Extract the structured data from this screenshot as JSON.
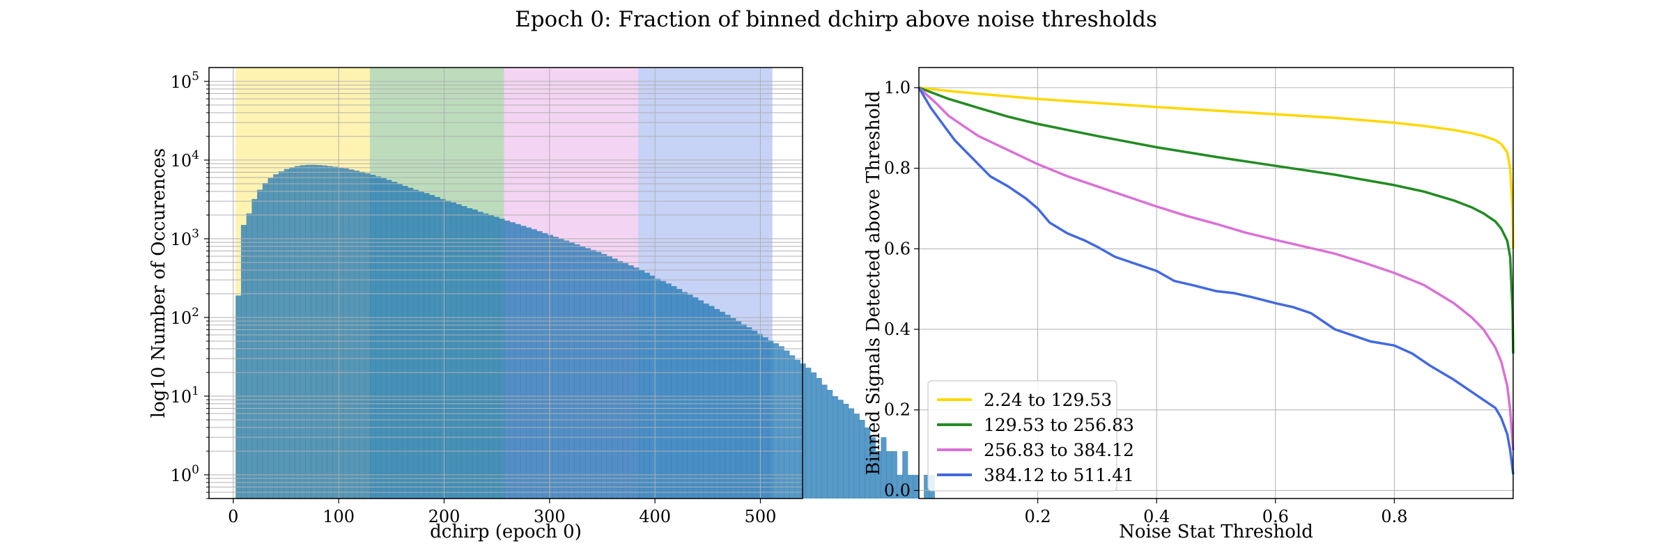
{
  "suptitle": "Epoch 0: Fraction of binned dchirp above noise thresholds",
  "chart_data": [
    {
      "type": "bar",
      "xlabel": "dchirp (epoch 0)",
      "ylabel": "log10 Number of Occurences",
      "xlim": [
        -23,
        540
      ],
      "ylim": [
        0.5,
        150000
      ],
      "yscale": "log",
      "grid": true,
      "xticks": [
        "0",
        "100",
        "200",
        "300",
        "400",
        "500"
      ],
      "yticks": [
        "10^0",
        "10^1",
        "10^2",
        "10^3",
        "10^4",
        "10^5"
      ],
      "bin_start": 2.24,
      "bin_width": 5.1,
      "counts": [
        190,
        1500,
        2100,
        3200,
        4200,
        5100,
        5900,
        6600,
        7200,
        7700,
        8100,
        8400,
        8600,
        8700,
        8700,
        8650,
        8550,
        8400,
        8250,
        8050,
        7850,
        7600,
        7350,
        7100,
        6800,
        6500,
        6200,
        5900,
        5600,
        5300,
        5000,
        4700,
        4450,
        4200,
        4000,
        3800,
        3600,
        3400,
        3200,
        3050,
        2900,
        2750,
        2600,
        2450,
        2350,
        2200,
        2100,
        2000,
        1900,
        1800,
        1700,
        1620,
        1540,
        1460,
        1390,
        1320,
        1250,
        1180,
        1120,
        1060,
        1000,
        950,
        900,
        850,
        800,
        760,
        720,
        680,
        640,
        600,
        560,
        520,
        490,
        460,
        430,
        400,
        370,
        340,
        310,
        290,
        270,
        250,
        230,
        210,
        195,
        180,
        165,
        150,
        140,
        128,
        118,
        108,
        98,
        90,
        82,
        75,
        68,
        62,
        56,
        51,
        47,
        43,
        38,
        33,
        29,
        26,
        23,
        20,
        17,
        14,
        12,
        10,
        9,
        8,
        7,
        6,
        5,
        4,
        3,
        2,
        3,
        2,
        2,
        1,
        2,
        1,
        1,
        0,
        1,
        1
      ],
      "bands": [
        {
          "from": 2.24,
          "to": 129.53,
          "color": "#ffd700"
        },
        {
          "from": 129.53,
          "to": 256.83,
          "color": "#228b22"
        },
        {
          "from": 256.83,
          "to": 384.12,
          "color": "#da70d6"
        },
        {
          "from": 384.12,
          "to": 511.41,
          "color": "#4169e1"
        }
      ],
      "bar_color": "#1f77b4"
    },
    {
      "type": "line",
      "xlabel": "Noise Stat Threshold",
      "ylabel": "Binned Signals Detected above Threshold",
      "xlim": [
        0,
        1
      ],
      "ylim": [
        -0.02,
        1.05
      ],
      "xticks": [
        "0.2",
        "0.4",
        "0.6",
        "0.8"
      ],
      "yticks": [
        "0.0",
        "0.2",
        "0.4",
        "0.6",
        "0.8",
        "1.0"
      ],
      "grid": true,
      "legend_position": "lower-left",
      "series": [
        {
          "name": "2.24 to 129.53",
          "color": "#ffd700",
          "x": [
            0,
            0.05,
            0.1,
            0.2,
            0.3,
            0.4,
            0.5,
            0.6,
            0.7,
            0.8,
            0.85,
            0.9,
            0.93,
            0.95,
            0.97,
            0.98,
            0.99,
            0.995,
            0.999,
            1.0
          ],
          "y": [
            1.0,
            0.992,
            0.985,
            0.972,
            0.962,
            0.952,
            0.943,
            0.934,
            0.925,
            0.913,
            0.905,
            0.895,
            0.887,
            0.88,
            0.87,
            0.86,
            0.84,
            0.8,
            0.7,
            0.6
          ]
        },
        {
          "name": "129.53 to 256.83",
          "color": "#228b22",
          "x": [
            0,
            0.05,
            0.1,
            0.15,
            0.2,
            0.3,
            0.4,
            0.5,
            0.6,
            0.7,
            0.8,
            0.85,
            0.9,
            0.93,
            0.95,
            0.97,
            0.98,
            0.99,
            0.995,
            0.999,
            1.0
          ],
          "y": [
            1.0,
            0.972,
            0.95,
            0.928,
            0.91,
            0.88,
            0.852,
            0.828,
            0.806,
            0.784,
            0.758,
            0.742,
            0.72,
            0.703,
            0.688,
            0.668,
            0.65,
            0.62,
            0.58,
            0.45,
            0.34
          ]
        },
        {
          "name": "256.83 to 384.12",
          "color": "#da70d6",
          "x": [
            0,
            0.03,
            0.05,
            0.08,
            0.1,
            0.15,
            0.2,
            0.25,
            0.3,
            0.35,
            0.4,
            0.45,
            0.5,
            0.55,
            0.6,
            0.65,
            0.7,
            0.75,
            0.8,
            0.85,
            0.9,
            0.93,
            0.95,
            0.97,
            0.98,
            0.99,
            0.995,
            1.0
          ],
          "y": [
            1.0,
            0.96,
            0.93,
            0.9,
            0.88,
            0.845,
            0.81,
            0.78,
            0.755,
            0.73,
            0.705,
            0.682,
            0.662,
            0.64,
            0.622,
            0.605,
            0.588,
            0.565,
            0.54,
            0.51,
            0.465,
            0.43,
            0.4,
            0.355,
            0.32,
            0.26,
            0.2,
            0.1
          ]
        },
        {
          "name": "384.12 to 511.41",
          "color": "#4169e1",
          "x": [
            0,
            0.02,
            0.04,
            0.06,
            0.08,
            0.1,
            0.12,
            0.15,
            0.18,
            0.2,
            0.22,
            0.25,
            0.28,
            0.3,
            0.33,
            0.36,
            0.4,
            0.43,
            0.46,
            0.5,
            0.53,
            0.56,
            0.6,
            0.63,
            0.66,
            0.7,
            0.73,
            0.76,
            0.8,
            0.83,
            0.86,
            0.9,
            0.93,
            0.95,
            0.97,
            0.98,
            0.99,
            0.995,
            1.0
          ],
          "y": [
            1.0,
            0.95,
            0.91,
            0.87,
            0.84,
            0.81,
            0.78,
            0.755,
            0.725,
            0.7,
            0.665,
            0.638,
            0.62,
            0.605,
            0.58,
            0.565,
            0.545,
            0.52,
            0.51,
            0.495,
            0.49,
            0.48,
            0.465,
            0.455,
            0.44,
            0.4,
            0.385,
            0.37,
            0.36,
            0.34,
            0.31,
            0.275,
            0.245,
            0.225,
            0.205,
            0.18,
            0.14,
            0.1,
            0.04
          ]
        }
      ]
    }
  ]
}
